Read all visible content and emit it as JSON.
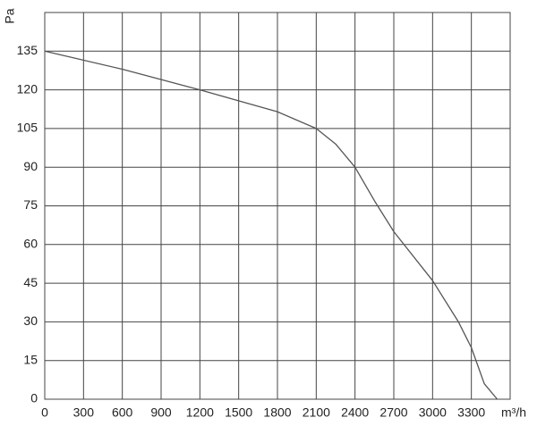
{
  "chart_data": {
    "type": "line",
    "x_label": "m³/h",
    "y_label": "Pa",
    "series": [
      {
        "color": "#555555",
        "x": [
          0,
          600,
          1200,
          1800,
          2100,
          2250,
          2400,
          2550,
          2700,
          3000,
          3200,
          3300,
          3400,
          3500
        ],
        "values": [
          135,
          128,
          120,
          111.5,
          105,
          99,
          90,
          77,
          65,
          46,
          30,
          20,
          6,
          0
        ]
      }
    ],
    "xlim": [
      0,
      3600
    ],
    "xticks": [
      0,
      300,
      600,
      900,
      1200,
      1500,
      1800,
      2100,
      2400,
      2700,
      3000,
      3300
    ],
    "ylim": [
      0,
      150
    ],
    "yticks": [
      0,
      15,
      30,
      45,
      60,
      75,
      90,
      105,
      120,
      135
    ],
    "grid": true
  }
}
